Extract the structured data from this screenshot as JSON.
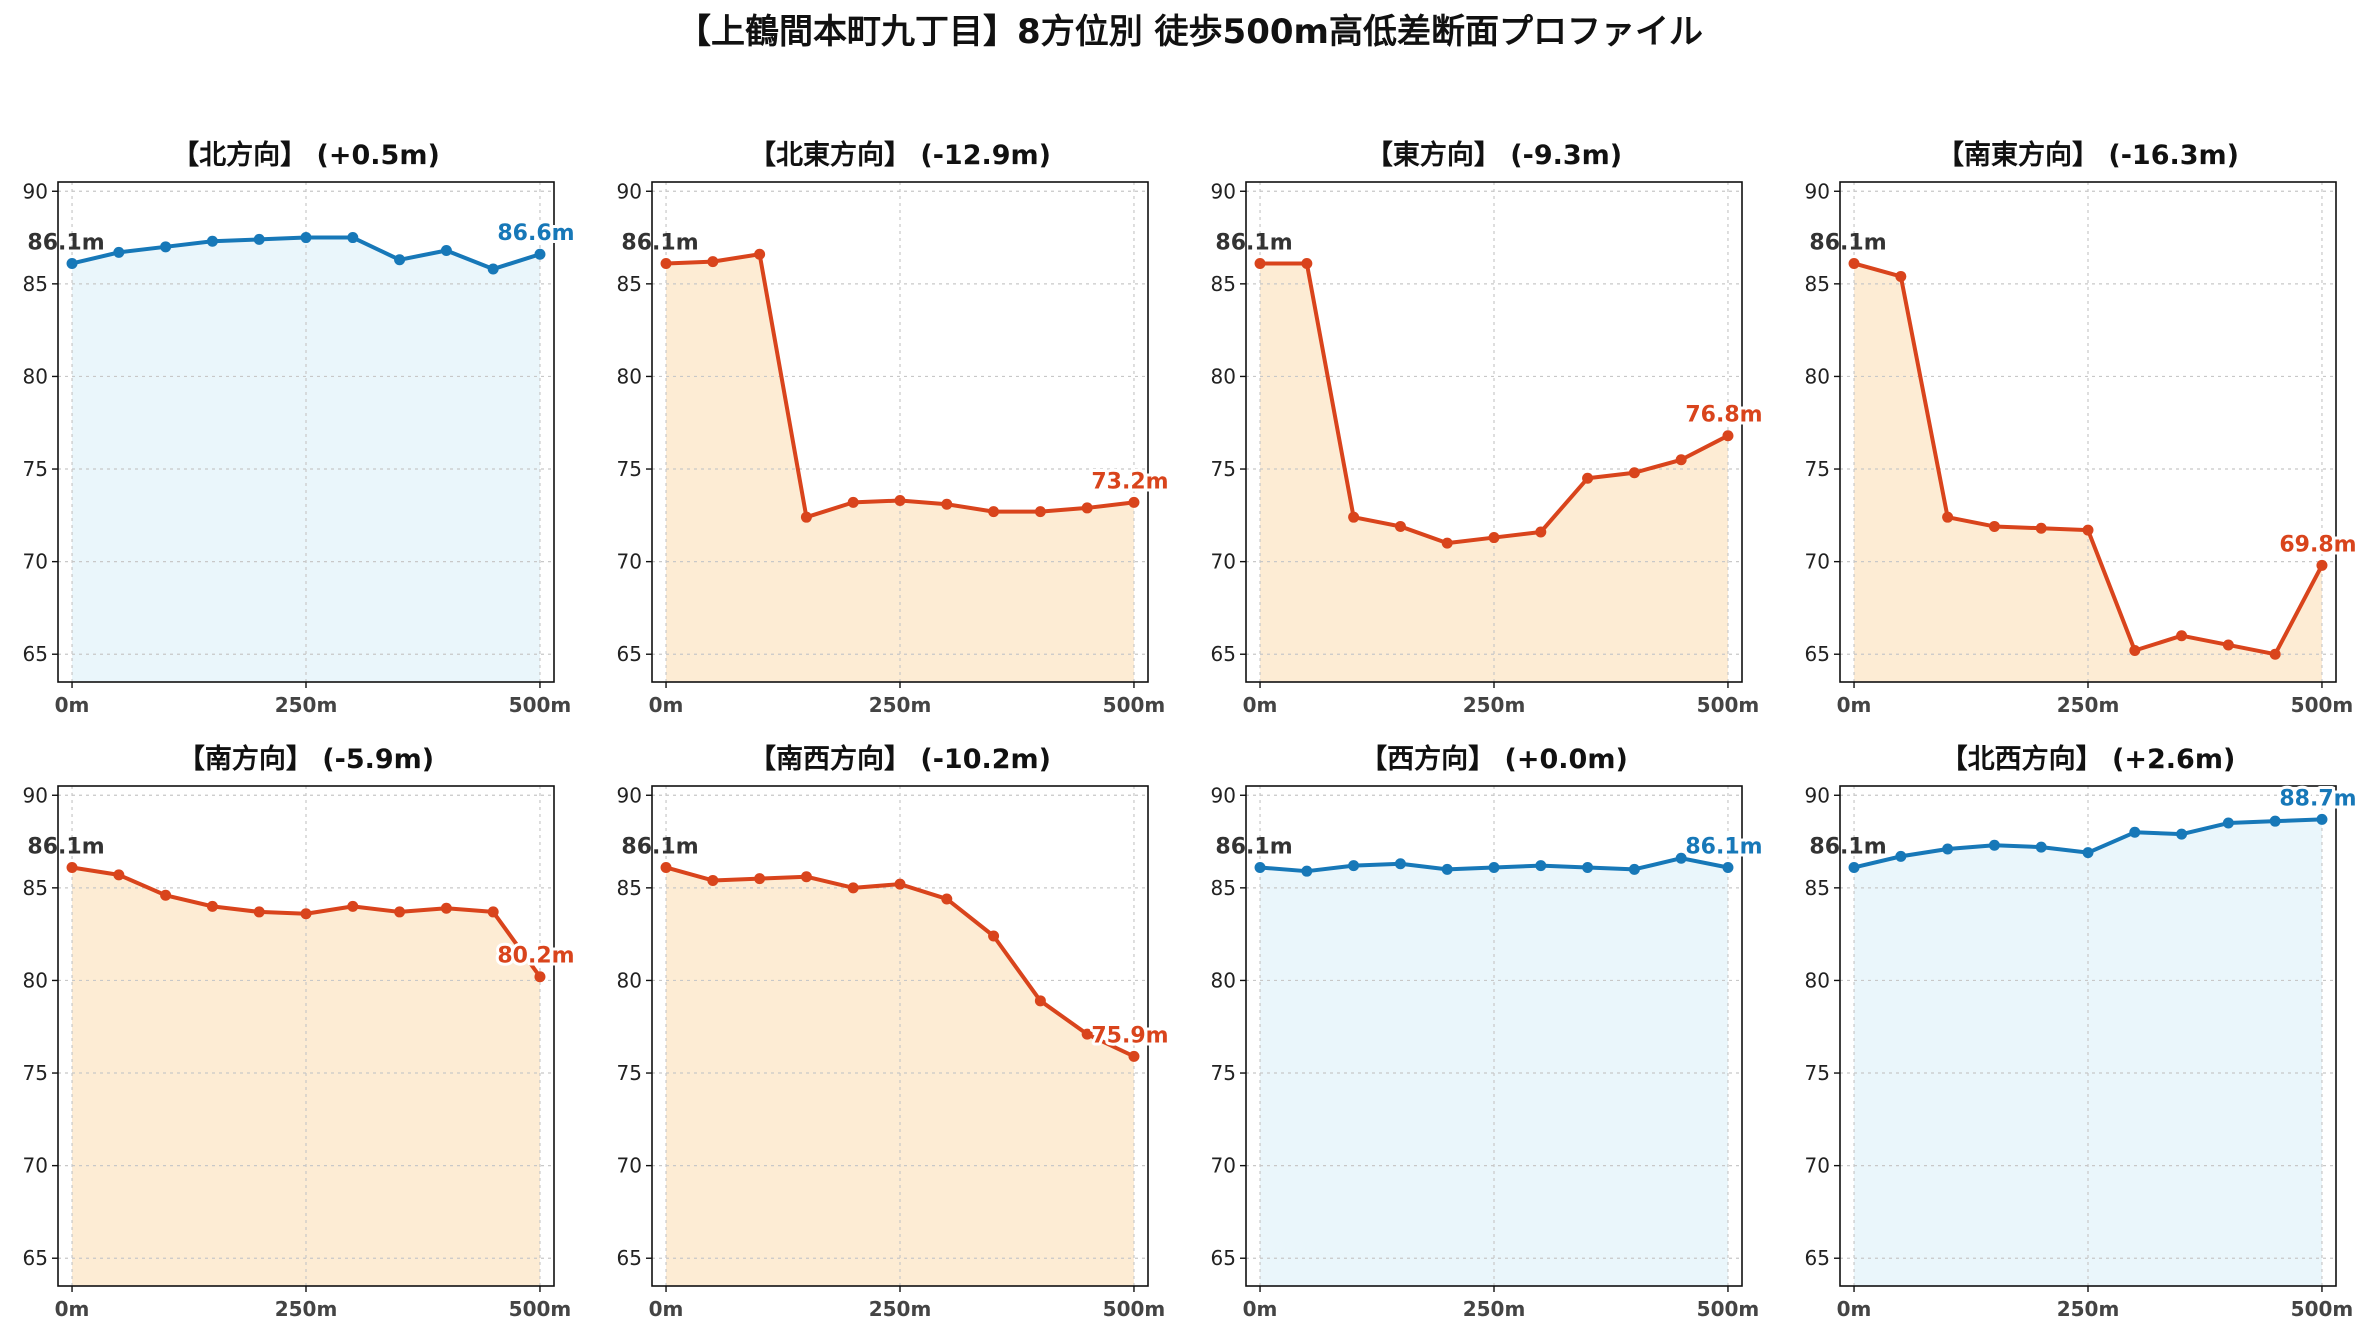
{
  "figure": {
    "title": "【上鶴間本町九丁目】8方位別 徒歩500m高低差断面プロファイル"
  },
  "colors": {
    "up_line": "#1778b8",
    "up_fill": "#eaf6fb",
    "down_line": "#d9441c",
    "down_fill": "#fdecd4",
    "grid": "#c8c8c8",
    "start_label": "#333333"
  },
  "chart_data": [
    {
      "type": "area",
      "title": "【北方向】 (+0.5m)",
      "trend": "up",
      "x": [
        0,
        50,
        100,
        150,
        200,
        250,
        300,
        350,
        400,
        450,
        500
      ],
      "y": [
        86.1,
        86.7,
        87.0,
        87.3,
        87.4,
        87.5,
        87.5,
        86.3,
        86.8,
        85.8,
        86.6
      ],
      "xticks": [
        {
          "v": 0,
          "label": "0m"
        },
        {
          "v": 250,
          "label": "250m"
        },
        {
          "v": 500,
          "label": "500m"
        }
      ],
      "yticks": [
        65,
        70,
        75,
        80,
        85,
        90
      ],
      "xlim": [
        -15,
        515
      ],
      "ylim": [
        63.5,
        90.5
      ],
      "start_label": "86.1m",
      "end_label": "86.6m",
      "grid": true
    },
    {
      "type": "area",
      "title": "【北東方向】 (-12.9m)",
      "trend": "down",
      "x": [
        0,
        50,
        100,
        150,
        200,
        250,
        300,
        350,
        400,
        450,
        500
      ],
      "y": [
        86.1,
        86.2,
        86.6,
        72.4,
        73.2,
        73.3,
        73.1,
        72.7,
        72.7,
        72.9,
        73.2
      ],
      "xticks": [
        {
          "v": 0,
          "label": "0m"
        },
        {
          "v": 250,
          "label": "250m"
        },
        {
          "v": 500,
          "label": "500m"
        }
      ],
      "yticks": [
        65,
        70,
        75,
        80,
        85,
        90
      ],
      "xlim": [
        -15,
        515
      ],
      "ylim": [
        63.5,
        90.5
      ],
      "start_label": "86.1m",
      "end_label": "73.2m",
      "grid": true
    },
    {
      "type": "area",
      "title": "【東方向】 (-9.3m)",
      "trend": "down",
      "x": [
        0,
        50,
        100,
        150,
        200,
        250,
        300,
        350,
        400,
        450,
        500
      ],
      "y": [
        86.1,
        86.1,
        72.4,
        71.9,
        71.0,
        71.3,
        71.6,
        74.5,
        74.8,
        75.5,
        76.8
      ],
      "xticks": [
        {
          "v": 0,
          "label": "0m"
        },
        {
          "v": 250,
          "label": "250m"
        },
        {
          "v": 500,
          "label": "500m"
        }
      ],
      "yticks": [
        65,
        70,
        75,
        80,
        85,
        90
      ],
      "xlim": [
        -15,
        515
      ],
      "ylim": [
        63.5,
        90.5
      ],
      "start_label": "86.1m",
      "end_label": "76.8m",
      "grid": true
    },
    {
      "type": "area",
      "title": "【南東方向】 (-16.3m)",
      "trend": "down",
      "x": [
        0,
        50,
        100,
        150,
        200,
        250,
        300,
        350,
        400,
        450,
        500
      ],
      "y": [
        86.1,
        85.4,
        72.4,
        71.9,
        71.8,
        71.7,
        65.2,
        66.0,
        65.5,
        65.0,
        69.8
      ],
      "xticks": [
        {
          "v": 0,
          "label": "0m"
        },
        {
          "v": 250,
          "label": "250m"
        },
        {
          "v": 500,
          "label": "500m"
        }
      ],
      "yticks": [
        65,
        70,
        75,
        80,
        85,
        90
      ],
      "xlim": [
        -15,
        515
      ],
      "ylim": [
        63.5,
        90.5
      ],
      "start_label": "86.1m",
      "end_label": "69.8m",
      "grid": true
    },
    {
      "type": "area",
      "title": "【南方向】 (-5.9m)",
      "trend": "down",
      "x": [
        0,
        50,
        100,
        150,
        200,
        250,
        300,
        350,
        400,
        450,
        500
      ],
      "y": [
        86.1,
        85.7,
        84.6,
        84.0,
        83.7,
        83.6,
        84.0,
        83.7,
        83.9,
        83.7,
        80.2
      ],
      "xticks": [
        {
          "v": 0,
          "label": "0m"
        },
        {
          "v": 250,
          "label": "250m"
        },
        {
          "v": 500,
          "label": "500m"
        }
      ],
      "yticks": [
        65,
        70,
        75,
        80,
        85,
        90
      ],
      "xlim": [
        -15,
        515
      ],
      "ylim": [
        63.5,
        90.5
      ],
      "start_label": "86.1m",
      "end_label": "80.2m",
      "grid": true
    },
    {
      "type": "area",
      "title": "【南西方向】 (-10.2m)",
      "trend": "down",
      "x": [
        0,
        50,
        100,
        150,
        200,
        250,
        300,
        350,
        400,
        450,
        500
      ],
      "y": [
        86.1,
        85.4,
        85.5,
        85.6,
        85.0,
        85.2,
        84.4,
        82.4,
        78.9,
        77.1,
        75.9
      ],
      "xticks": [
        {
          "v": 0,
          "label": "0m"
        },
        {
          "v": 250,
          "label": "250m"
        },
        {
          "v": 500,
          "label": "500m"
        }
      ],
      "yticks": [
        65,
        70,
        75,
        80,
        85,
        90
      ],
      "xlim": [
        -15,
        515
      ],
      "ylim": [
        63.5,
        90.5
      ],
      "start_label": "86.1m",
      "end_label": "75.9m",
      "grid": true
    },
    {
      "type": "area",
      "title": "【西方向】 (+0.0m)",
      "trend": "up",
      "x": [
        0,
        50,
        100,
        150,
        200,
        250,
        300,
        350,
        400,
        450,
        500
      ],
      "y": [
        86.1,
        85.9,
        86.2,
        86.3,
        86.0,
        86.1,
        86.2,
        86.1,
        86.0,
        86.6,
        86.1
      ],
      "xticks": [
        {
          "v": 0,
          "label": "0m"
        },
        {
          "v": 250,
          "label": "250m"
        },
        {
          "v": 500,
          "label": "500m"
        }
      ],
      "yticks": [
        65,
        70,
        75,
        80,
        85,
        90
      ],
      "xlim": [
        -15,
        515
      ],
      "ylim": [
        63.5,
        90.5
      ],
      "start_label": "86.1m",
      "end_label": "86.1m",
      "grid": true
    },
    {
      "type": "area",
      "title": "【北西方向】 (+2.6m)",
      "trend": "up",
      "x": [
        0,
        50,
        100,
        150,
        200,
        250,
        300,
        350,
        400,
        450,
        500
      ],
      "y": [
        86.1,
        86.7,
        87.1,
        87.3,
        87.2,
        86.9,
        88.0,
        87.9,
        88.5,
        88.6,
        88.7
      ],
      "xticks": [
        {
          "v": 0,
          "label": "0m"
        },
        {
          "v": 250,
          "label": "250m"
        },
        {
          "v": 500,
          "label": "500m"
        }
      ],
      "yticks": [
        65,
        70,
        75,
        80,
        85,
        90
      ],
      "xlim": [
        -15,
        515
      ],
      "ylim": [
        63.5,
        90.5
      ],
      "start_label": "86.1m",
      "end_label": "88.7m",
      "grid": true
    }
  ]
}
